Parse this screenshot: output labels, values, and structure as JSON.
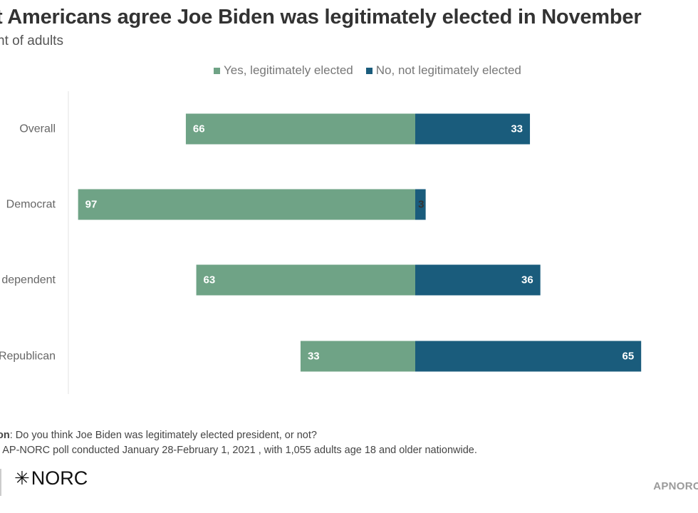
{
  "chart_data": {
    "type": "bar",
    "orientation": "horizontal-diverging",
    "title": "t Americans agree Joe Biden was legitimately elected in November",
    "subtitle": "nt of adults",
    "categories": [
      "Overall",
      "Democrat",
      "dependent",
      "Republican"
    ],
    "series": [
      {
        "name": "Yes, legitimately elected",
        "color": "#6fa386",
        "values": [
          66,
          97,
          63,
          33
        ]
      },
      {
        "name": "No, not legitimately elected",
        "color": "#1a5c7c",
        "values": [
          33,
          3,
          36,
          65
        ]
      }
    ],
    "legend_position": "top-center",
    "grid": false
  },
  "notes": {
    "question_label": "on",
    "question_text": ": Do you think Joe Biden was legitimately elected president, or not?",
    "source_text": ": AP-NORC poll conducted January 28-February 1, 2021 , with 1,055 adults age 18 and older nationwide."
  },
  "branding": {
    "logo_text": "NORC",
    "logo_icon": "asterisk-star-icon",
    "watermark": "APNORC"
  }
}
